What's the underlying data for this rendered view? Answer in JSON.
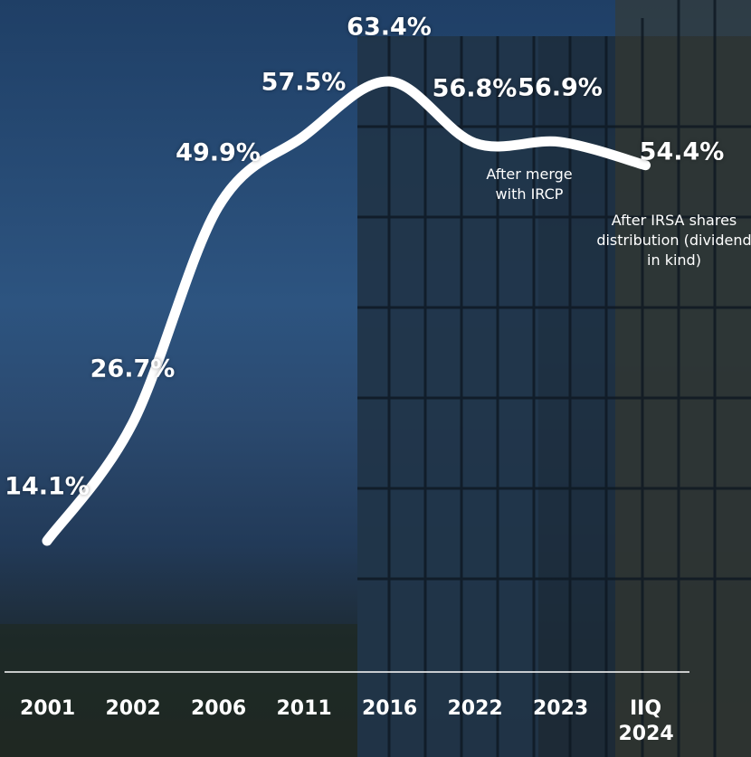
{
  "chart_data": {
    "type": "line",
    "categories": [
      "2001",
      "2002",
      "2006",
      "2011",
      "2016",
      "2022",
      "2023",
      "IIQ 2024"
    ],
    "values": [
      14.1,
      26.7,
      49.9,
      57.5,
      63.4,
      56.8,
      56.9,
      54.4
    ],
    "value_labels": [
      "14.1%",
      "26.7%",
      "49.9%",
      "57.5%",
      "63.4%",
      "56.8%",
      "56.9%",
      "54.4%"
    ],
    "color": "#ffffff",
    "annotations": [
      "After merge with IRCP",
      "After IRSA shares distribution (dividend in kind)"
    ]
  }
}
